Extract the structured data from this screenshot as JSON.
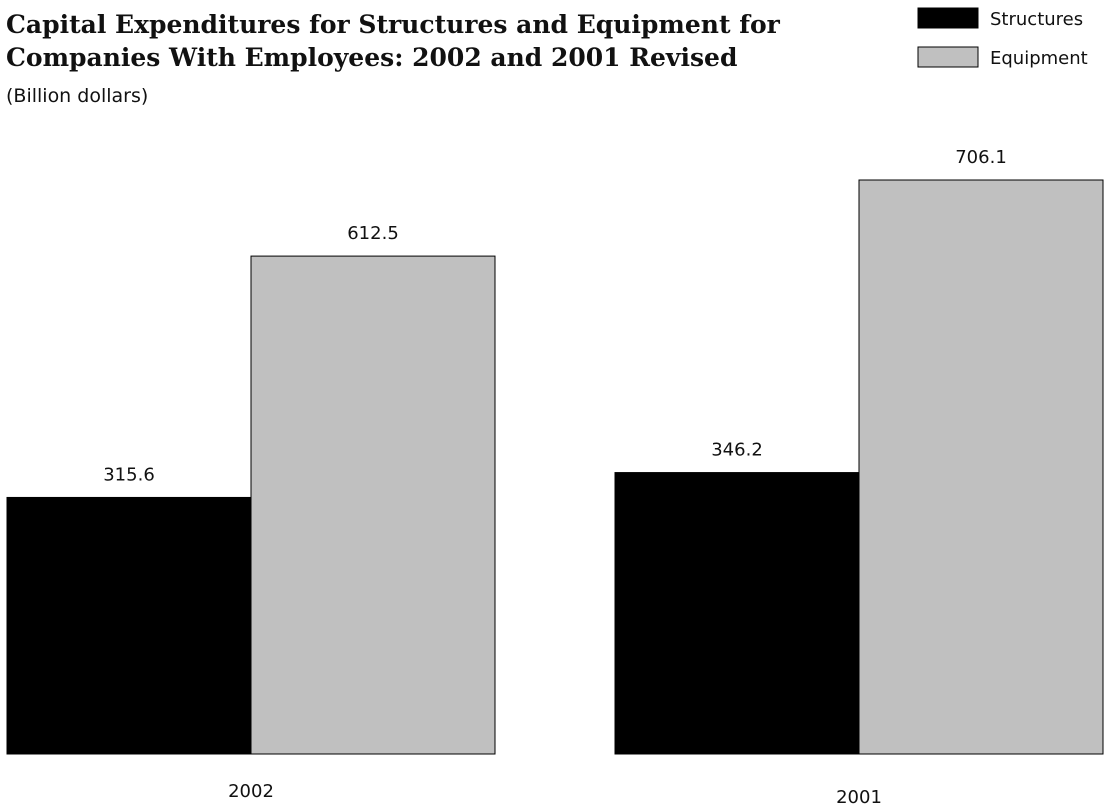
{
  "chart_data": {
    "type": "bar",
    "title": "Capital Expenditures for Structures and Equipment for Companies With Employees: 2002 and 2001 Revised",
    "title_lines": [
      "Capital Expenditures for Structures and Equipment for",
      "Companies With Employees: 2002 and 2001 Revised"
    ],
    "subtitle": "(Billion dollars)",
    "categories": [
      "2002",
      "2001"
    ],
    "series": [
      {
        "name": "Structures",
        "values": [
          315.6,
          346.2
        ],
        "color": "#000000"
      },
      {
        "name": "Equipment",
        "values": [
          612.5,
          706.1
        ],
        "color": "#c0c0c0"
      }
    ],
    "value_labels": [
      [
        "315.6",
        "346.2"
      ],
      [
        "612.5",
        "706.1"
      ]
    ],
    "ylim": [
      0,
      706.1
    ],
    "grid": false,
    "axes_visible": false,
    "legend_position": "top-right",
    "xlabel": "",
    "ylabel": ""
  }
}
